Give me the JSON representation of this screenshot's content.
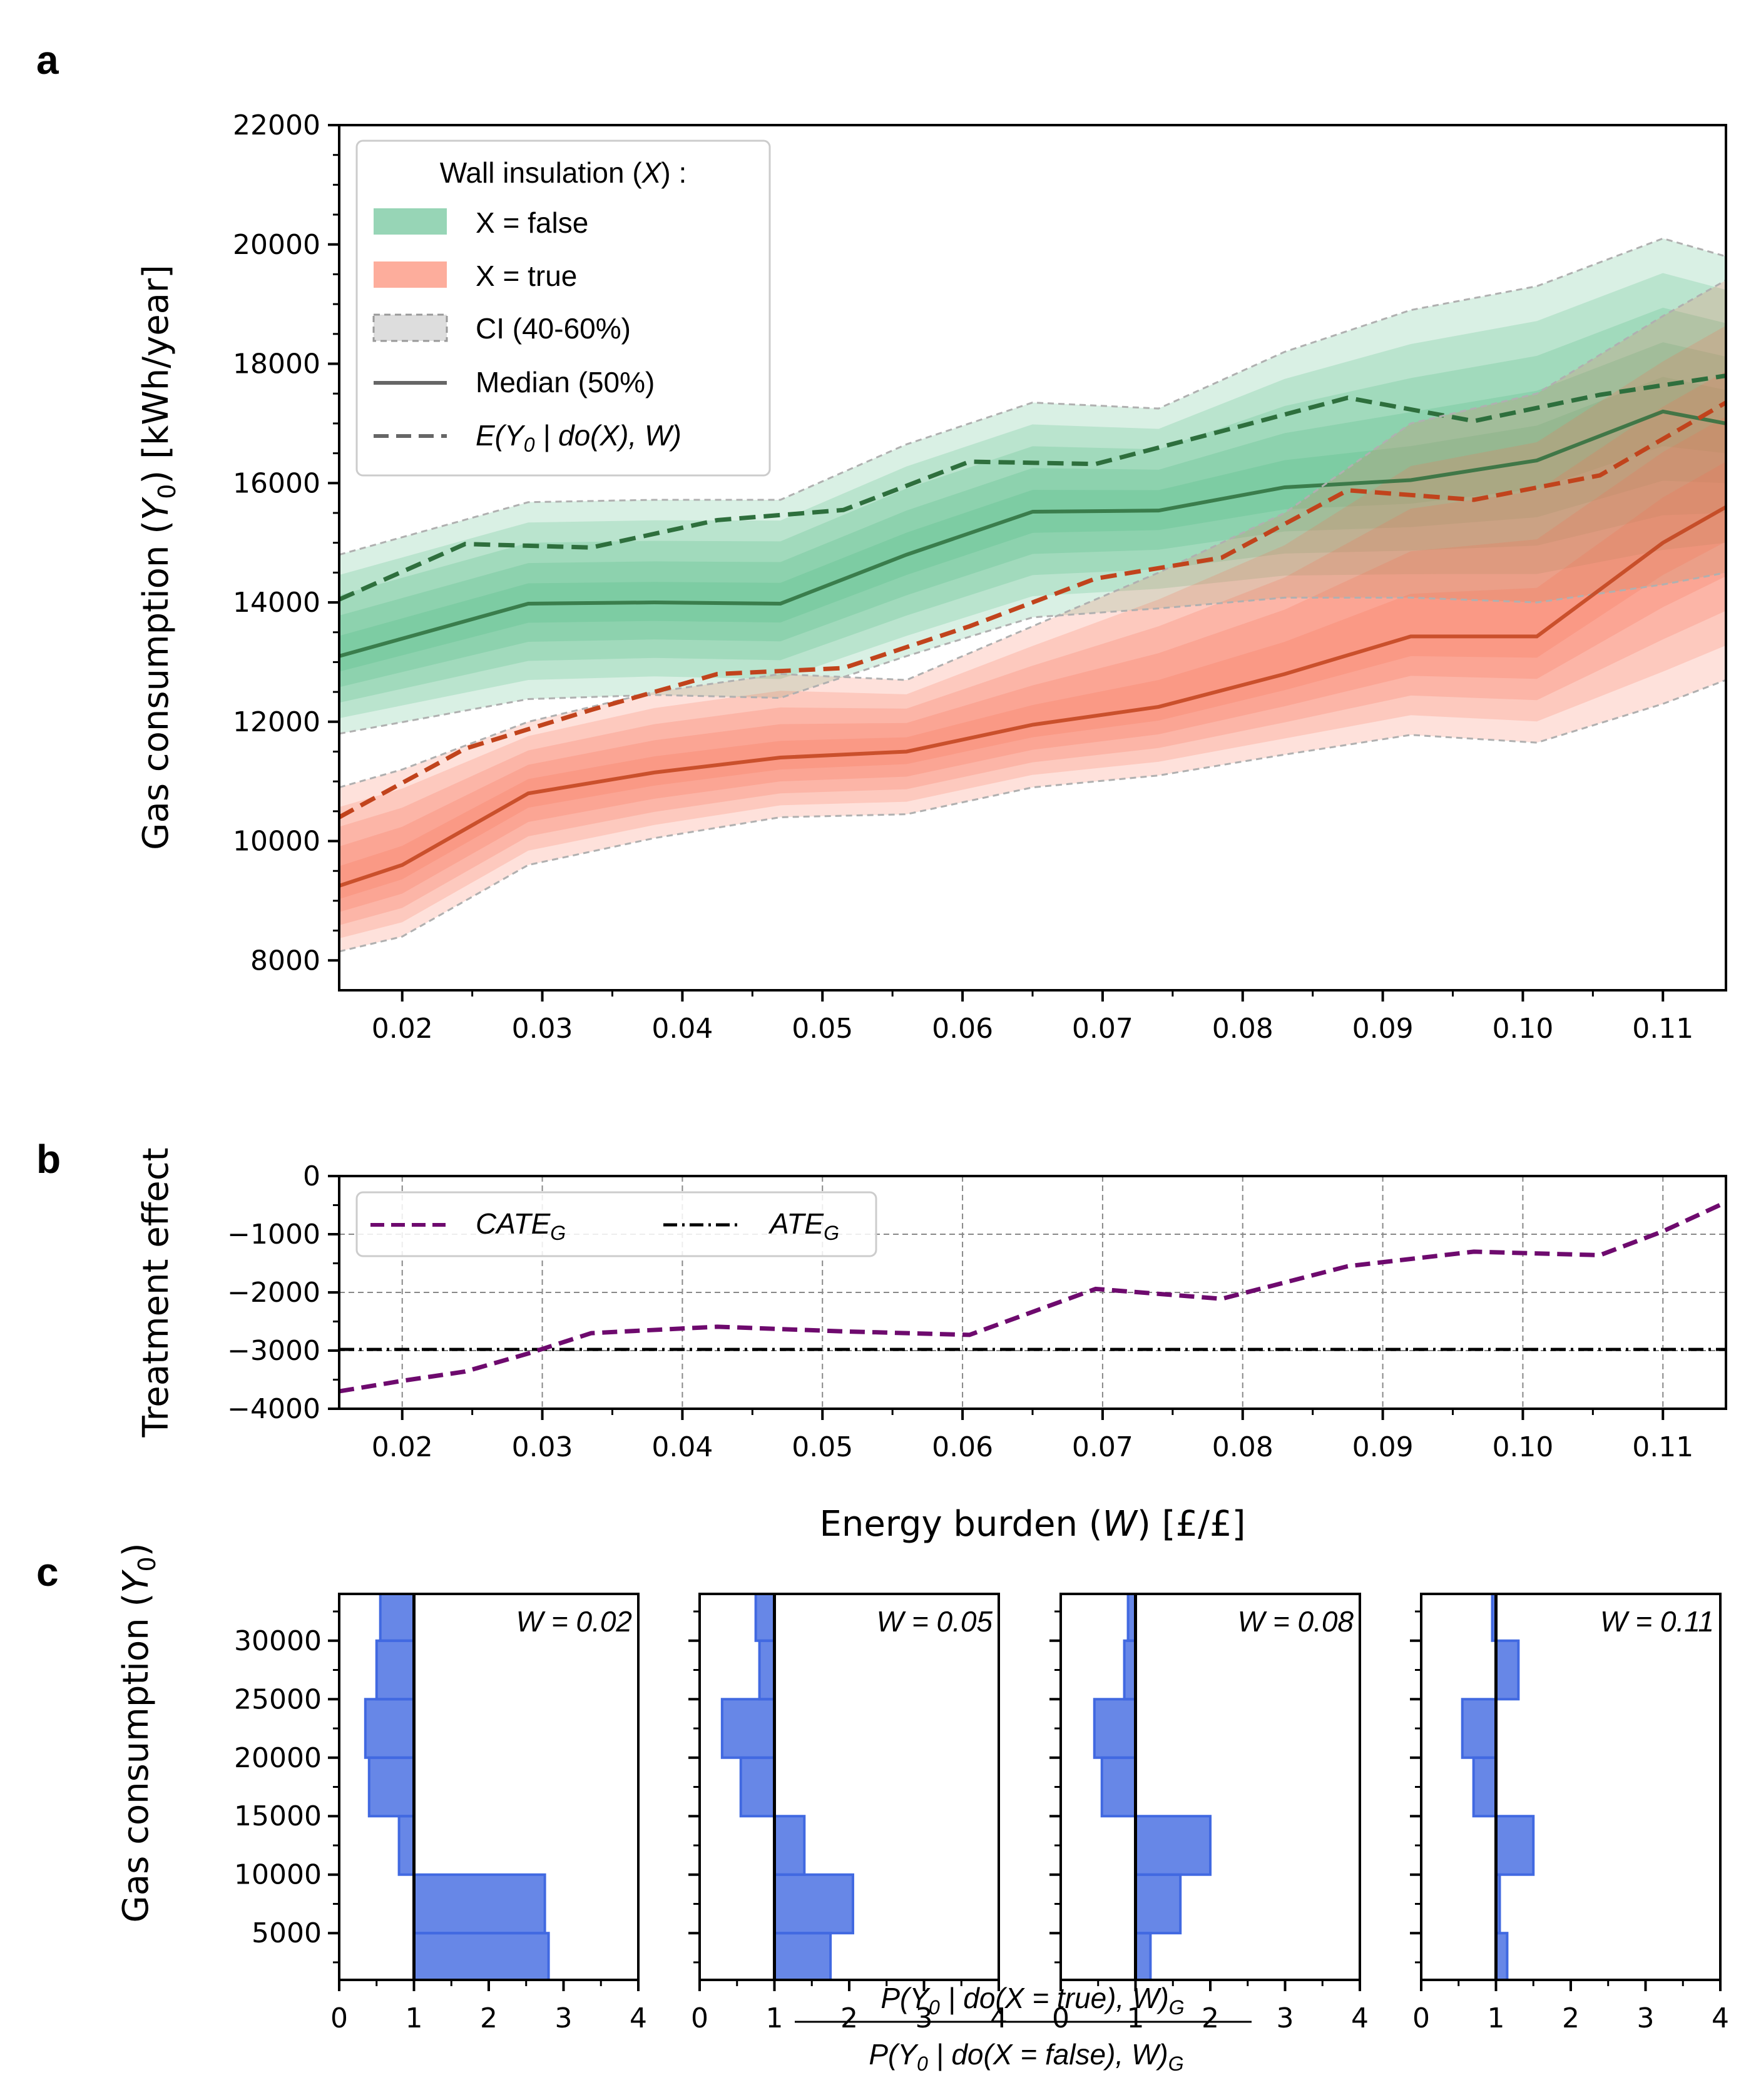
{
  "panel_labels": {
    "a": "a",
    "b": "b",
    "c": "c"
  },
  "colors": {
    "green_fill": "#41b37a",
    "green_line": "#2e6f3d",
    "red_fill": "#fb6a4a",
    "red_line": "#c1431c",
    "ci_edge": "#b0b0b0",
    "cate": "#6e0a6e",
    "ate": "#000000",
    "hist_fill": "#4169e1",
    "grid": "#888888"
  },
  "chart_data": [
    {
      "id": "a",
      "type": "area",
      "ylabel": "Gas consumption (Y0) [kWh/year]",
      "xlim": [
        0.0155,
        0.1145
      ],
      "ylim": [
        7500,
        22000
      ],
      "xticks": [
        "0.02",
        "0.03",
        "0.04",
        "0.05",
        "0.06",
        "0.07",
        "0.08",
        "0.09",
        "0.10",
        "0.11"
      ],
      "xtick_values": [
        0.02,
        0.03,
        0.04,
        0.05,
        0.06,
        0.07,
        0.08,
        0.09,
        0.1,
        0.11
      ],
      "yticks": [
        "8000",
        "10000",
        "12000",
        "14000",
        "16000",
        "18000",
        "20000",
        "22000"
      ],
      "ytick_values": [
        8000,
        10000,
        12000,
        14000,
        16000,
        18000,
        20000,
        22000
      ],
      "legend": {
        "title": "Wall insulation (X) :",
        "entries": [
          "X = false",
          "X = true",
          "CI (40-60%)",
          "Median (50%)",
          "E(Y0 | do(X), W)"
        ]
      },
      "series": [
        {
          "name": "X = false",
          "x": [
            0.0155,
            0.029,
            0.038,
            0.047,
            0.056,
            0.065,
            0.074,
            0.083,
            0.092,
            0.101,
            0.11,
            0.1145
          ],
          "median": [
            13100,
            13980,
            14000,
            13980,
            14800,
            15520,
            15540,
            15930,
            16050,
            16380,
            17200,
            17000
          ],
          "lower": [
            11800,
            12380,
            12450,
            12400,
            13100,
            13750,
            13900,
            14080,
            14080,
            14000,
            14300,
            14500
          ],
          "upper": [
            14800,
            15680,
            15720,
            15720,
            16650,
            17350,
            17250,
            18200,
            18900,
            19300,
            20100,
            19800
          ],
          "expected_x": [
            0.0155,
            0.0245,
            0.0335,
            0.0425,
            0.0515,
            0.0605,
            0.0695,
            0.0785,
            0.0875,
            0.0965,
            0.1055,
            0.1145
          ],
          "expected": [
            14050,
            14980,
            14920,
            15380,
            15550,
            16360,
            16320,
            16870,
            17430,
            17040,
            17480,
            17800
          ]
        },
        {
          "name": "X = true",
          "x": [
            0.0155,
            0.02,
            0.029,
            0.038,
            0.047,
            0.056,
            0.065,
            0.074,
            0.083,
            0.092,
            0.101,
            0.11,
            0.1145
          ],
          "median": [
            9250,
            9600,
            10800,
            11150,
            11400,
            11500,
            11950,
            12250,
            12800,
            13430,
            13430,
            15000,
            15600
          ],
          "lower": [
            8150,
            8400,
            9600,
            10050,
            10400,
            10450,
            10900,
            11100,
            11450,
            11780,
            11650,
            12300,
            12700
          ],
          "upper": [
            10900,
            11200,
            12000,
            12500,
            12800,
            12700,
            13600,
            14500,
            15500,
            17000,
            17500,
            18800,
            19400
          ],
          "expected_x": [
            0.0155,
            0.0245,
            0.0335,
            0.0425,
            0.0515,
            0.0605,
            0.0695,
            0.0785,
            0.0875,
            0.0965,
            0.1055,
            0.1145
          ],
          "expected": [
            10400,
            11550,
            12200,
            12800,
            12900,
            13600,
            14400,
            14750,
            15880,
            15720,
            16130,
            17350
          ]
        }
      ]
    },
    {
      "id": "b",
      "type": "line",
      "xlabel": "Energy burden (W) [£/£]",
      "ylabel": "Treatment effect",
      "xlim": [
        0.0155,
        0.1145
      ],
      "ylim": [
        -4000,
        0
      ],
      "yticks": [
        "0",
        "−1000",
        "−2000",
        "−3000",
        "−4000"
      ],
      "ytick_values": [
        0,
        -1000,
        -2000,
        -3000,
        -4000
      ],
      "xticks": [
        "0.02",
        "0.03",
        "0.04",
        "0.05",
        "0.06",
        "0.07",
        "0.08",
        "0.09",
        "0.10",
        "0.11"
      ],
      "legend": [
        "CATE_G",
        "ATE_G"
      ],
      "series": [
        {
          "name": "CATE_G",
          "x": [
            0.0155,
            0.02,
            0.0245,
            0.029,
            0.0335,
            0.0425,
            0.0515,
            0.0605,
            0.0695,
            0.0785,
            0.0875,
            0.0965,
            0.1055,
            0.11,
            0.1145
          ],
          "values": [
            -3700,
            -3520,
            -3360,
            -3050,
            -2700,
            -2590,
            -2670,
            -2730,
            -1940,
            -2110,
            -1550,
            -1300,
            -1360,
            -950,
            -450
          ]
        },
        {
          "name": "ATE_G",
          "x": [
            0.0155,
            0.1145
          ],
          "values": [
            -2980,
            -2980
          ]
        }
      ]
    },
    {
      "id": "c",
      "type": "bar",
      "ylabel": "Gas consumption (Y0)",
      "xlabel_num": "P(Y0 | do(X = true), W)G",
      "xlabel_den": "P(Y0 | do(X = false), W)G",
      "xlim": [
        0,
        4
      ],
      "ylim": [
        1000,
        34000
      ],
      "xticks": [
        "0",
        "1",
        "2",
        "3",
        "4"
      ],
      "yticks": [
        "5000",
        "10000",
        "15000",
        "20000",
        "25000",
        "30000"
      ],
      "bin_edges": [
        1000,
        5000,
        10000,
        15000,
        20000,
        25000,
        30000,
        34000
      ],
      "subplots": [
        {
          "label": "W = 0.02",
          "ratios": [
            2.8,
            2.75,
            0.8,
            0.4,
            0.35,
            0.5,
            0.55
          ]
        },
        {
          "label": "W = 0.05",
          "ratios": [
            1.75,
            2.05,
            1.4,
            0.55,
            0.3,
            0.8,
            0.75
          ]
        },
        {
          "label": "W = 0.08",
          "ratios": [
            1.2,
            1.6,
            2.0,
            0.55,
            0.45,
            0.85,
            0.9
          ]
        },
        {
          "label": "W = 0.11",
          "ratios": [
            1.15,
            1.05,
            1.5,
            0.7,
            0.55,
            1.3,
            0.95
          ]
        }
      ]
    }
  ]
}
